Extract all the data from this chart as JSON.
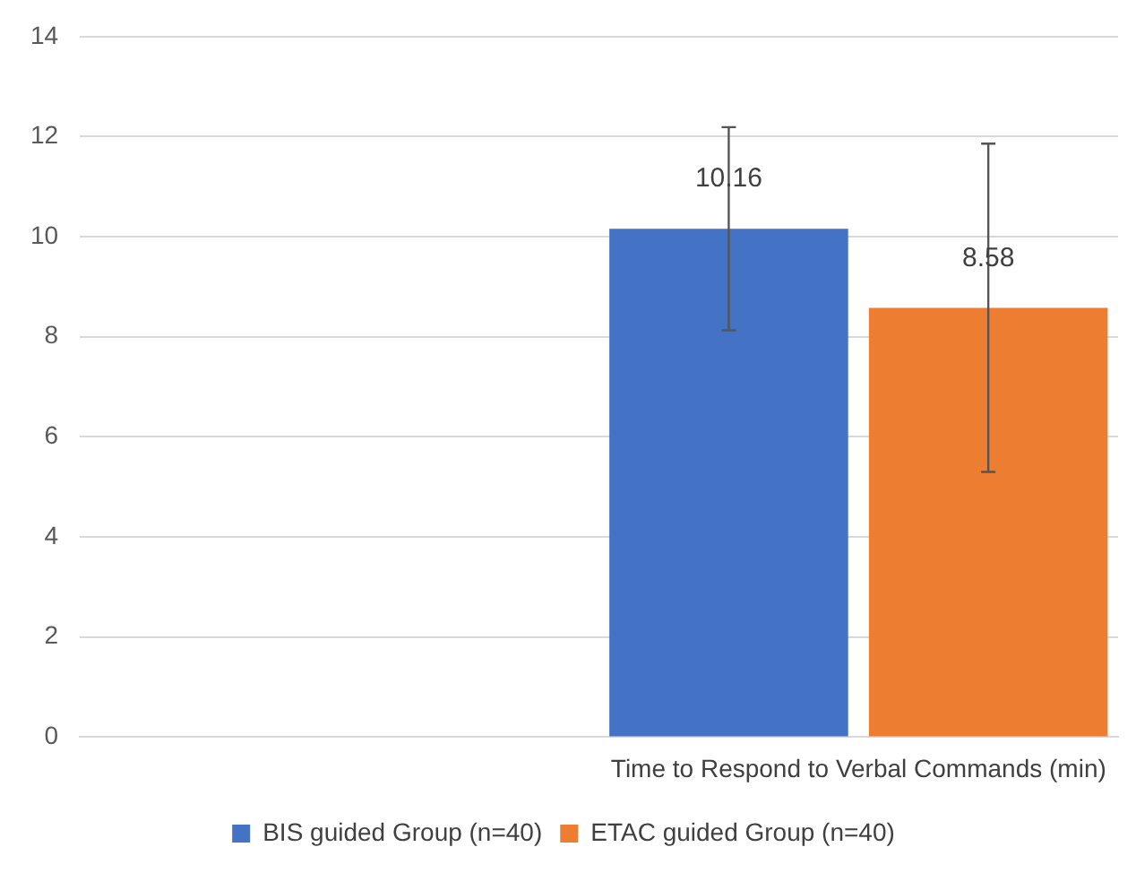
{
  "chart_data": {
    "type": "bar",
    "categories": [
      null,
      "Time to Respond to Verbal Commands (min)"
    ],
    "series": [
      {
        "name": "BIS guided Group (n=40)",
        "color": "#4472c4",
        "values": [
          null,
          10.16
        ],
        "errors": [
          null,
          2.03
        ]
      },
      {
        "name": "ETAC guided Group (n=40)",
        "color": "#ed7d31",
        "values": [
          null,
          8.58
        ],
        "errors": [
          null,
          3.28
        ]
      }
    ],
    "ylim": [
      0,
      14
    ],
    "yticks": [
      0,
      2,
      4,
      6,
      8,
      10,
      12,
      14
    ],
    "grid": "y",
    "legend": "bottom",
    "data_labels": true
  }
}
